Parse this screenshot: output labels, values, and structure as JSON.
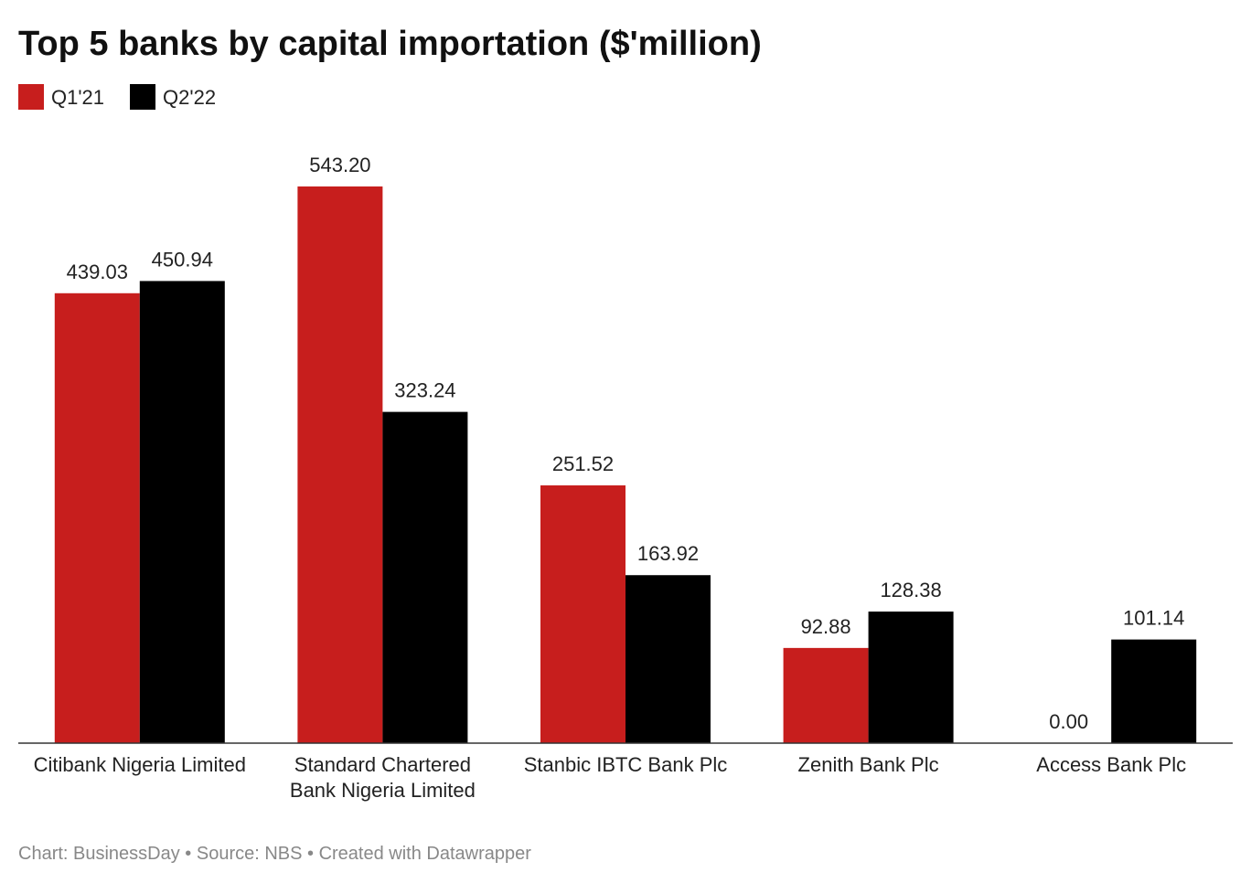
{
  "chart_data": {
    "type": "bar",
    "title": "Top 5 banks by capital importation ($'million)",
    "categories": [
      "Citibank Nigeria Limited",
      "Standard Chartered Bank Nigeria Limited",
      "Stanbic IBTC Bank Plc",
      "Zenith Bank Plc",
      "Access Bank Plc"
    ],
    "series": [
      {
        "name": "Q1'21",
        "color": "#c71e1d",
        "values": [
          439.03,
          543.2,
          251.52,
          92.88,
          0
        ],
        "value_labels": [
          "439.03",
          "543.20",
          "251.52",
          "92.88",
          "0.00"
        ]
      },
      {
        "name": "Q2'22",
        "color": "#000000",
        "values": [
          450.94,
          323.24,
          163.92,
          128.38,
          101.14
        ],
        "value_labels": [
          "450.94",
          "323.24",
          "163.92",
          "128.38",
          "101.14"
        ]
      }
    ],
    "source": "Chart: BusinessDay • Source: NBS • Created with Datawrapper"
  }
}
